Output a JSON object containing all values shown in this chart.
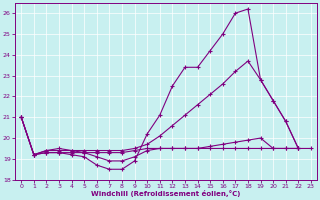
{
  "xlabel": "Windchill (Refroidissement éolien,°C)",
  "bg_color": "#c8f0f0",
  "line_color": "#800080",
  "xlim": [
    -0.5,
    23.5
  ],
  "ylim": [
    18,
    26.5
  ],
  "yticks": [
    18,
    19,
    20,
    21,
    22,
    23,
    24,
    25,
    26
  ],
  "xticks": [
    0,
    1,
    2,
    3,
    4,
    5,
    6,
    7,
    8,
    9,
    10,
    11,
    12,
    13,
    14,
    15,
    16,
    17,
    18,
    19,
    20,
    21,
    22,
    23
  ],
  "line1_x": [
    0,
    1,
    2,
    3,
    4,
    5,
    6,
    7,
    8,
    9,
    10,
    11,
    12,
    13,
    14,
    15,
    16,
    17,
    18,
    19,
    20,
    21,
    22
  ],
  "line1_y": [
    21.0,
    19.2,
    19.3,
    19.3,
    19.2,
    19.1,
    18.7,
    18.5,
    18.5,
    18.9,
    20.2,
    21.1,
    22.5,
    23.4,
    23.4,
    24.2,
    25.0,
    26.0,
    26.2,
    22.8,
    21.8,
    20.8,
    19.5
  ],
  "line2_x": [
    0,
    1,
    2,
    3,
    4,
    5,
    6,
    7,
    8,
    9,
    10,
    11,
    12,
    13,
    14,
    15,
    16,
    17,
    18,
    19,
    20,
    21,
    22
  ],
  "line2_y": [
    21.0,
    19.2,
    19.4,
    19.4,
    19.4,
    19.4,
    19.4,
    19.4,
    19.4,
    19.5,
    19.7,
    20.1,
    20.6,
    21.1,
    21.6,
    22.1,
    22.6,
    23.2,
    23.7,
    22.8,
    21.8,
    20.8,
    19.5
  ],
  "line3_x": [
    0,
    1,
    2,
    3,
    4,
    5,
    6,
    7,
    8,
    9,
    10,
    11,
    12,
    13,
    14,
    15,
    16,
    17,
    18,
    19,
    20,
    21,
    22,
    23
  ],
  "line3_y": [
    21.0,
    19.2,
    19.3,
    19.3,
    19.3,
    19.3,
    19.3,
    19.3,
    19.3,
    19.4,
    19.5,
    19.5,
    19.5,
    19.5,
    19.5,
    19.5,
    19.5,
    19.5,
    19.5,
    19.5,
    19.5,
    19.5,
    19.5,
    19.5
  ],
  "line4_x": [
    0,
    1,
    2,
    3,
    4,
    5,
    6,
    7,
    8,
    9,
    10,
    11,
    12,
    13,
    14,
    15,
    16,
    17,
    18,
    19,
    20,
    21,
    22
  ],
  "line4_y": [
    21.0,
    19.2,
    19.4,
    19.5,
    19.4,
    19.3,
    19.1,
    18.9,
    18.9,
    19.1,
    19.4,
    19.5,
    19.5,
    19.5,
    19.5,
    19.6,
    19.7,
    19.8,
    19.9,
    20.0,
    19.5,
    19.5,
    19.5
  ]
}
